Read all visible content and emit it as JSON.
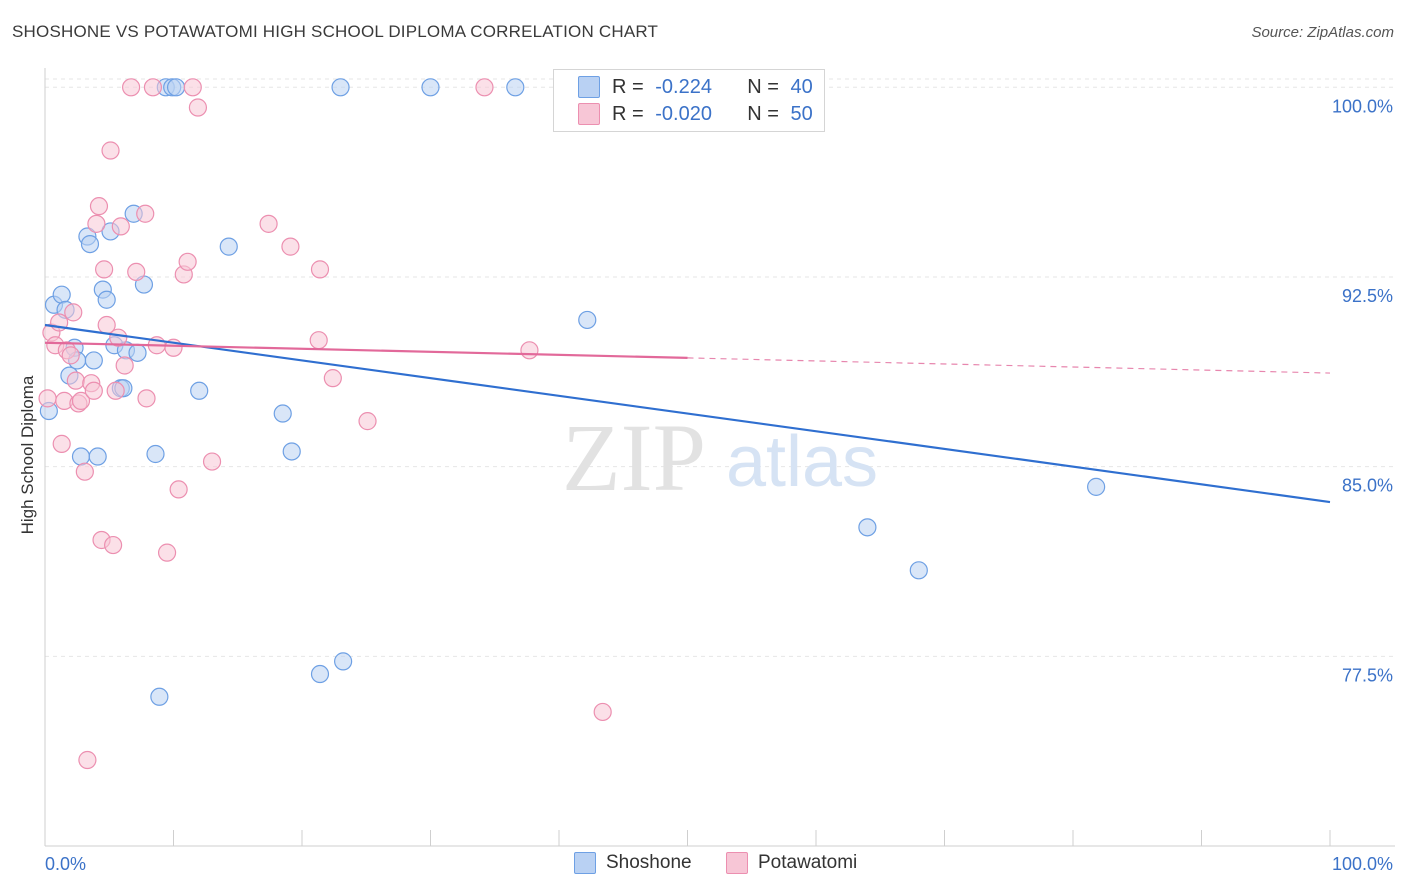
{
  "header": {
    "title": "SHOSHONE VS POTAWATOMI HIGH SCHOOL DIPLOMA CORRELATION CHART",
    "source": "Source: ZipAtlas.com"
  },
  "watermark": {
    "zip": "ZIP",
    "atlas": "atlas"
  },
  "legend_stats": [
    {
      "r_label": "R =",
      "r_value": "-0.224",
      "n_label": "N =",
      "n_value": "40",
      "color": "#6ea0e4",
      "fill": "#b9d1f3"
    },
    {
      "r_label": "R =",
      "r_value": "-0.020",
      "n_label": "N =",
      "n_value": "50",
      "color": "#ec8fb0",
      "fill": "#f7c6d6"
    }
  ],
  "chart_data": {
    "type": "scatter",
    "title": "SHOSHONE VS POTAWATOMI HIGH SCHOOL DIPLOMA CORRELATION CHART",
    "xlabel": "",
    "ylabel": "High School Diploma",
    "xlim": [
      0,
      100
    ],
    "ylim": [
      70.0,
      101.0
    ],
    "x_tick_labels": [
      "0.0%",
      "100.0%"
    ],
    "y_ticks": [
      100.0,
      92.5,
      85.0,
      77.5
    ],
    "y_tick_labels": [
      "100.0%",
      "92.5%",
      "85.0%",
      "77.5%"
    ],
    "grid": true,
    "legend_position": "bottom-center",
    "series": [
      {
        "name": "Shoshone",
        "stroke": "#6ea0e4",
        "fill": "#b9d1f3",
        "line_color": "#2f6fd0",
        "trend": {
          "x0": 0,
          "y0": 90.6,
          "x1": 100,
          "y1": 83.6,
          "dash_from": null
        },
        "points": [
          [
            0.3,
            87.2
          ],
          [
            0.7,
            91.4
          ],
          [
            1.3,
            91.8
          ],
          [
            1.6,
            91.2
          ],
          [
            1.9,
            88.6
          ],
          [
            2.3,
            89.7
          ],
          [
            2.5,
            89.2
          ],
          [
            2.8,
            85.4
          ],
          [
            3.3,
            94.1
          ],
          [
            3.5,
            93.8
          ],
          [
            3.8,
            89.2
          ],
          [
            4.1,
            85.4
          ],
          [
            4.5,
            92.0
          ],
          [
            4.8,
            91.6
          ],
          [
            5.1,
            94.3
          ],
          [
            5.4,
            89.8
          ],
          [
            5.9,
            88.1
          ],
          [
            6.1,
            88.1
          ],
          [
            6.3,
            89.6
          ],
          [
            6.9,
            95.0
          ],
          [
            7.2,
            89.5
          ],
          [
            7.7,
            92.2
          ],
          [
            8.6,
            85.5
          ],
          [
            8.9,
            75.9
          ],
          [
            9.4,
            100.0
          ],
          [
            9.9,
            100.0
          ],
          [
            12.0,
            88.0
          ],
          [
            14.3,
            93.7
          ],
          [
            18.5,
            87.1
          ],
          [
            19.2,
            85.6
          ],
          [
            21.4,
            76.8
          ],
          [
            23.2,
            77.3
          ],
          [
            23.0,
            100.0
          ],
          [
            30.0,
            100.0
          ],
          [
            36.6,
            100.0
          ],
          [
            42.2,
            90.8
          ],
          [
            64.0,
            82.6
          ],
          [
            68.0,
            80.9
          ],
          [
            81.8,
            84.2
          ],
          [
            10.2,
            100.0
          ]
        ]
      },
      {
        "name": "Potawatomi",
        "stroke": "#ec8fb0",
        "fill": "#f7c6d6",
        "line_color": "#e2699a",
        "trend": {
          "x0": 0,
          "y0": 89.9,
          "x1": 100,
          "y1": 88.7,
          "dash_from": 50
        },
        "points": [
          [
            0.2,
            87.7
          ],
          [
            0.5,
            90.3
          ],
          [
            0.8,
            89.8
          ],
          [
            1.1,
            90.7
          ],
          [
            1.3,
            85.9
          ],
          [
            1.5,
            87.6
          ],
          [
            1.7,
            89.6
          ],
          [
            2.0,
            89.4
          ],
          [
            2.2,
            91.1
          ],
          [
            2.4,
            88.4
          ],
          [
            2.6,
            87.5
          ],
          [
            2.8,
            87.6
          ],
          [
            3.1,
            84.8
          ],
          [
            3.3,
            73.4
          ],
          [
            3.6,
            88.3
          ],
          [
            3.8,
            88.0
          ],
          [
            4.0,
            94.6
          ],
          [
            4.2,
            95.3
          ],
          [
            4.4,
            82.1
          ],
          [
            4.6,
            92.8
          ],
          [
            4.8,
            90.6
          ],
          [
            5.1,
            97.5
          ],
          [
            5.3,
            81.9
          ],
          [
            5.5,
            88.0
          ],
          [
            5.7,
            90.1
          ],
          [
            5.9,
            94.5
          ],
          [
            6.2,
            89.0
          ],
          [
            7.1,
            92.7
          ],
          [
            7.8,
            95.0
          ],
          [
            7.9,
            87.7
          ],
          [
            8.4,
            100.0
          ],
          [
            8.7,
            89.8
          ],
          [
            9.5,
            81.6
          ],
          [
            10.0,
            89.7
          ],
          [
            10.4,
            84.1
          ],
          [
            10.8,
            92.6
          ],
          [
            11.1,
            93.1
          ],
          [
            11.9,
            99.2
          ],
          [
            13.0,
            85.2
          ],
          [
            6.7,
            100.0
          ],
          [
            17.4,
            94.6
          ],
          [
            19.1,
            93.7
          ],
          [
            21.4,
            92.8
          ],
          [
            21.3,
            90.0
          ],
          [
            22.4,
            88.5
          ],
          [
            25.1,
            86.8
          ],
          [
            34.2,
            100.0
          ],
          [
            37.7,
            89.6
          ],
          [
            43.4,
            75.3
          ],
          [
            11.5,
            100.0
          ]
        ]
      }
    ]
  }
}
